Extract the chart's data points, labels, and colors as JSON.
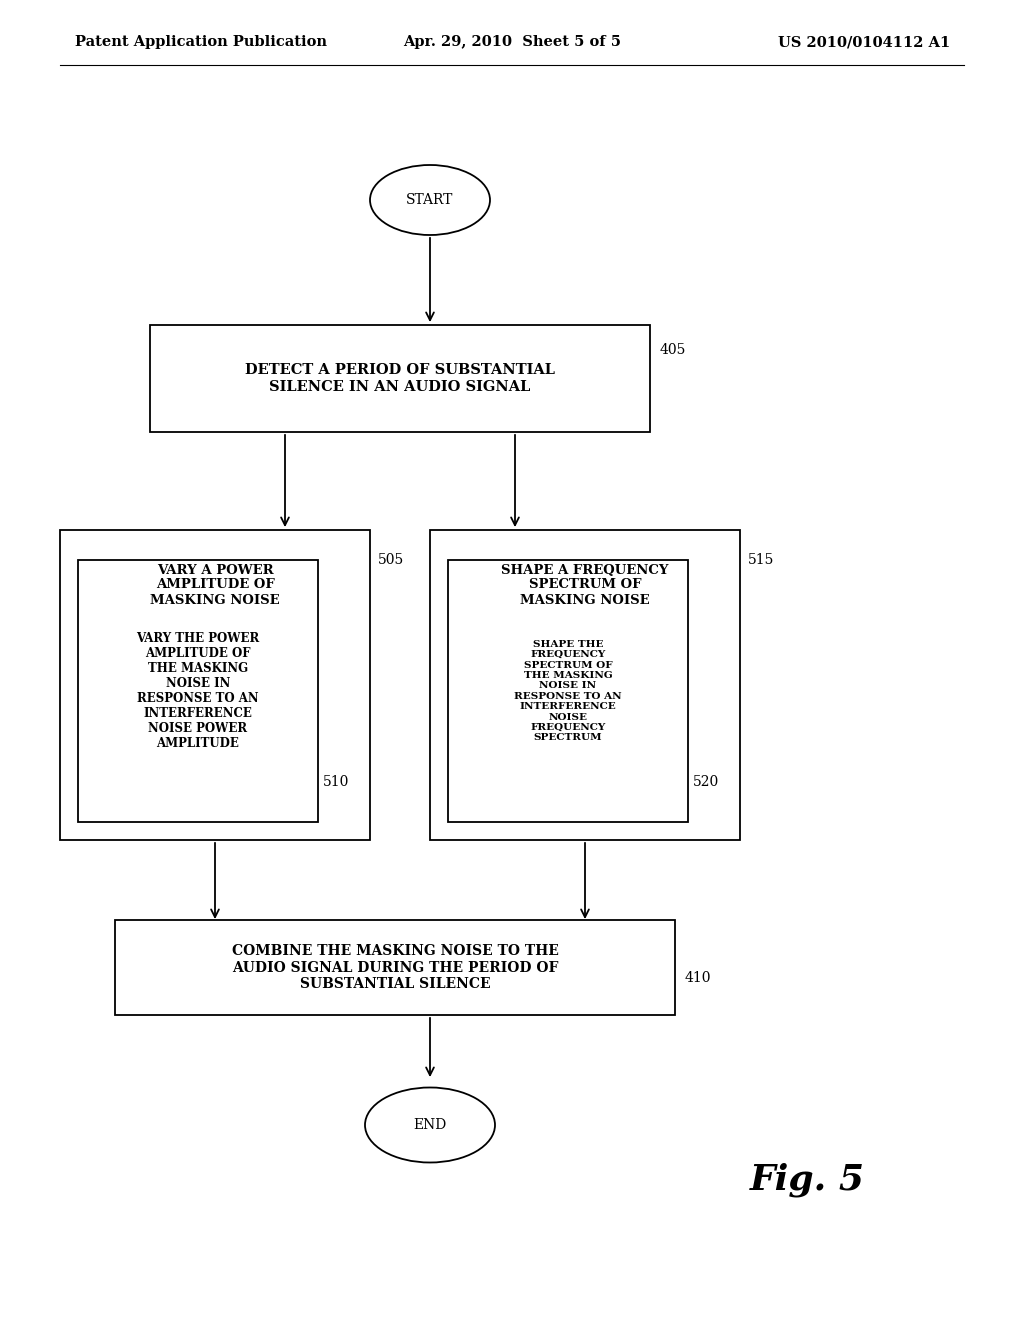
{
  "background_color": "#ffffff",
  "header_left": "Patent Application Publication",
  "header_center": "Apr. 29, 2010  Sheet 5 of 5",
  "header_right": "US 2010/0104112 A1",
  "header_fontsize": 10.5,
  "fig_label": "Fig. 5",
  "fig_label_fontsize": 26,
  "start_text": "START",
  "end_text": "END",
  "box405_text": "DETECT A PERIOD OF SUBSTANTIAL\nSILENCE IN AN AUDIO SIGNAL",
  "box405_label": "405",
  "box505_text": "VARY A POWER\nAMPLITUDE OF\nMASKING NOISE",
  "box505_label": "505",
  "box510_text": "VARY THE POWER\nAMPLITUDE OF\nTHE MASKING\nNOISE IN\nRESPONSE TO AN\nINTERFERENCE\nNOISE POWER\nAMPLITUDE",
  "box510_label": "510",
  "box515_text": "SHAPE A FREQUENCY\nSPECTRUM OF\nMASKING NOISE",
  "box515_label": "515",
  "box520_text": "SHAPE THE\nFREQUENCY\nSPECTRUM OF\nTHE MASKING\nNOISE IN\nRESPONSE TO AN\nINTERFERENCE\nNOISE\nFREQUENCY\nSPECTRUM",
  "box520_label": "520",
  "box410_text": "COMBINE THE MASKING NOISE TO THE\nAUDIO SIGNAL DURING THE PERIOD OF\nSUBSTANTIAL SILENCE",
  "box410_label": "410",
  "text_fontsize": 9,
  "label_fontsize": 10
}
